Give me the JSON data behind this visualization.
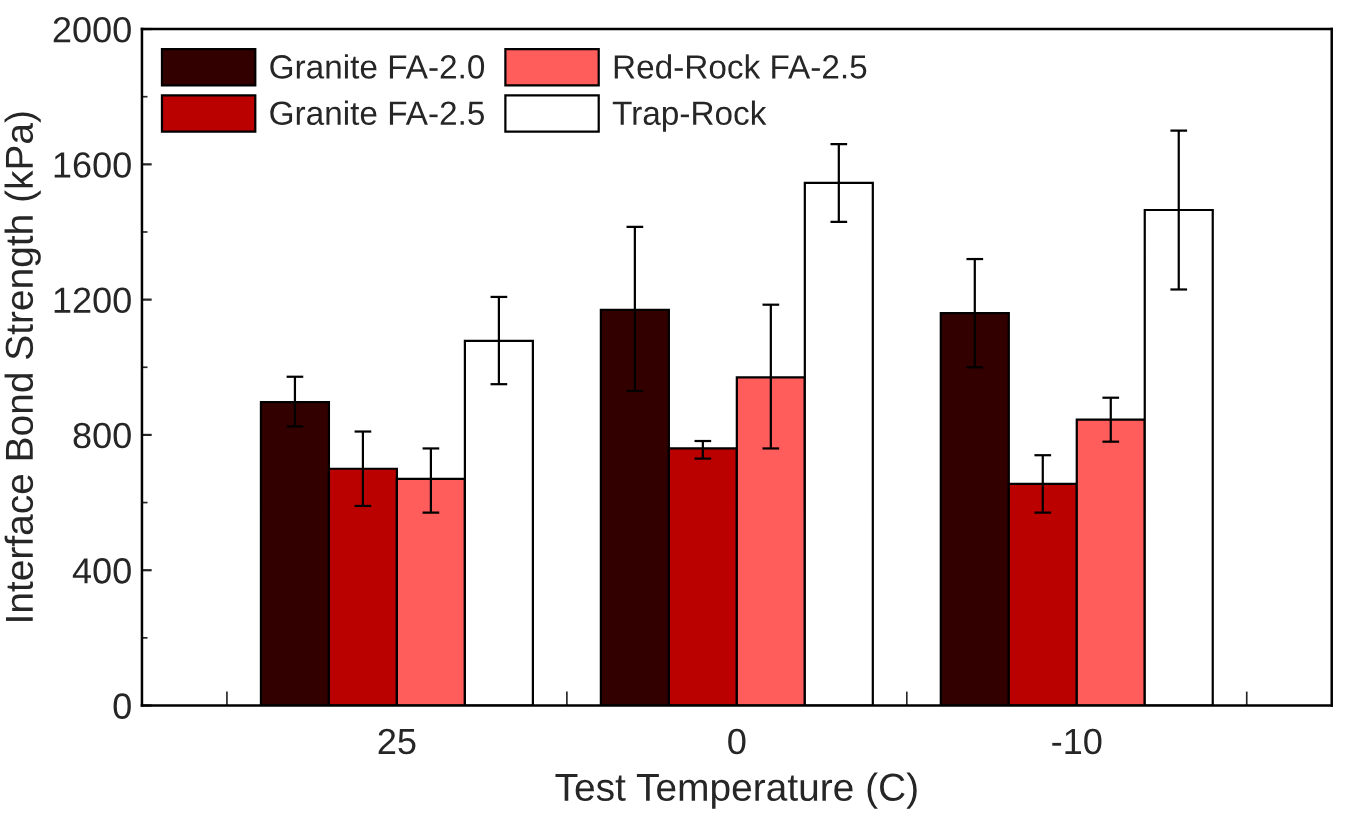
{
  "chart_data": {
    "type": "bar",
    "xlabel": "Test Temperature (C)",
    "ylabel": "Interface Bond Strength (kPa)",
    "categories": [
      "25",
      "0",
      "-10"
    ],
    "series": [
      {
        "name": "Granite FA-2.0",
        "color": "#330000",
        "values": [
          897,
          1170,
          1160
        ],
        "errors": [
          [
            825,
            972
          ],
          [
            930,
            1415
          ],
          [
            1000,
            1320
          ]
        ]
      },
      {
        "name": "Granite FA-2.5",
        "color": "#bb0000",
        "values": [
          700,
          760,
          655
        ],
        "errors": [
          [
            590,
            810
          ],
          [
            730,
            782
          ],
          [
            570,
            740
          ]
        ]
      },
      {
        "name": "Red-Rock FA-2.5",
        "color": "#ff5c5c",
        "values": [
          670,
          970,
          845
        ],
        "errors": [
          [
            570,
            760
          ],
          [
            760,
            1185
          ],
          [
            780,
            910
          ]
        ]
      },
      {
        "name": "Trap-Rock",
        "color": "#ffffff",
        "values": [
          1078,
          1545,
          1465
        ],
        "errors": [
          [
            950,
            1208
          ],
          [
            1430,
            1660
          ],
          [
            1230,
            1700
          ]
        ]
      }
    ],
    "ylim": [
      0,
      2000
    ],
    "yticks": [
      0,
      400,
      800,
      1200,
      1600,
      2000
    ],
    "grid": false,
    "legend": "top left"
  }
}
